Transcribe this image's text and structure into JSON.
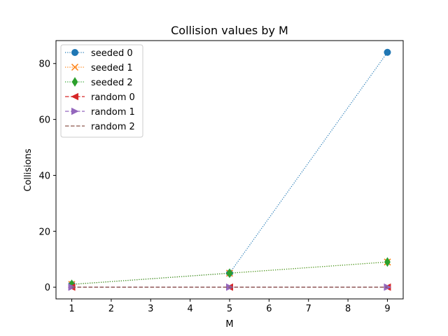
{
  "chart_data": {
    "type": "line",
    "title": "Collision values by M",
    "xlabel": "M",
    "ylabel": "Collisions",
    "x": [
      1,
      5,
      9
    ],
    "xlim": [
      0.6,
      9.4
    ],
    "ylim": [
      -4.2,
      88.2
    ],
    "xticks": [
      "1",
      "2",
      "3",
      "4",
      "5",
      "6",
      "7",
      "8",
      "9"
    ],
    "yticks": [
      "0",
      "20",
      "40",
      "60",
      "80"
    ],
    "grid": false,
    "legend_position": "top-left",
    "series": [
      {
        "name": "seeded 0",
        "values": [
          1,
          5,
          84
        ],
        "color": "#1f77b4",
        "linestyle": "dotted",
        "marker": "circle"
      },
      {
        "name": "seeded 1",
        "values": [
          1,
          5,
          9
        ],
        "color": "#ff7f0e",
        "linestyle": "dotted",
        "marker": "x"
      },
      {
        "name": "seeded 2",
        "values": [
          1,
          5,
          9
        ],
        "color": "#2ca02c",
        "linestyle": "dotted",
        "marker": "thin-diamond"
      },
      {
        "name": "random 0",
        "values": [
          0,
          0,
          0
        ],
        "color": "#d62728",
        "linestyle": "dashed",
        "marker": "triangle-left"
      },
      {
        "name": "random 1",
        "values": [
          0,
          0,
          0
        ],
        "color": "#9467bd",
        "linestyle": "dashed",
        "marker": "triangle-right"
      },
      {
        "name": "random 2",
        "values": [
          0,
          0,
          0
        ],
        "color": "#8c564b",
        "linestyle": "dashed",
        "marker": "none"
      }
    ]
  }
}
